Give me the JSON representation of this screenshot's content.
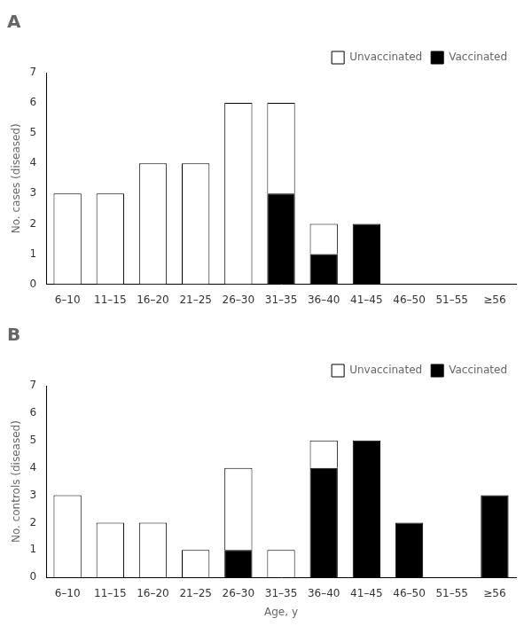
{
  "chart_data": [
    {
      "type": "bar",
      "title": "A",
      "stacked": true,
      "grid": false,
      "legend": "upper right",
      "categories": [
        "6–10",
        "11–15",
        "16–20",
        "21–25",
        "26–30",
        "31–35",
        "36–40",
        "41–45",
        "46–50",
        "51–55",
        "≥56"
      ],
      "series": [
        {
          "name": "Vaccinated",
          "color": "#000000",
          "values": [
            0,
            0,
            0,
            0,
            0,
            3,
            1,
            2,
            0,
            0,
            0
          ]
        },
        {
          "name": "Unvaccinated",
          "color": "#ffffff",
          "values": [
            3,
            3,
            4,
            4,
            6,
            3,
            1,
            0,
            0,
            0,
            0
          ]
        }
      ],
      "ylabel": "No. cases (diseased)",
      "ylim": [
        0,
        7
      ],
      "yticks": [
        0,
        1,
        2,
        3,
        4,
        5,
        6,
        7
      ]
    },
    {
      "type": "bar",
      "title": "B",
      "stacked": true,
      "grid": false,
      "legend": "upper right",
      "categories": [
        "6–10",
        "11–15",
        "16–20",
        "21–25",
        "26–30",
        "31–35",
        "36–40",
        "41–45",
        "46–50",
        "51–55",
        "≥56"
      ],
      "series": [
        {
          "name": "Vaccinated",
          "color": "#000000",
          "values": [
            0,
            0,
            0,
            0,
            1,
            0,
            4,
            5,
            2,
            0,
            3
          ]
        },
        {
          "name": "Unvaccinated",
          "color": "#ffffff",
          "values": [
            3,
            2,
            2,
            1,
            3,
            1,
            1,
            0,
            0,
            0,
            0
          ]
        }
      ],
      "xlabel": "Age, y",
      "ylabel": "No. controls (diseased)",
      "ylim": [
        0,
        7
      ],
      "yticks": [
        0,
        1,
        2,
        3,
        4,
        5,
        6,
        7
      ]
    }
  ]
}
